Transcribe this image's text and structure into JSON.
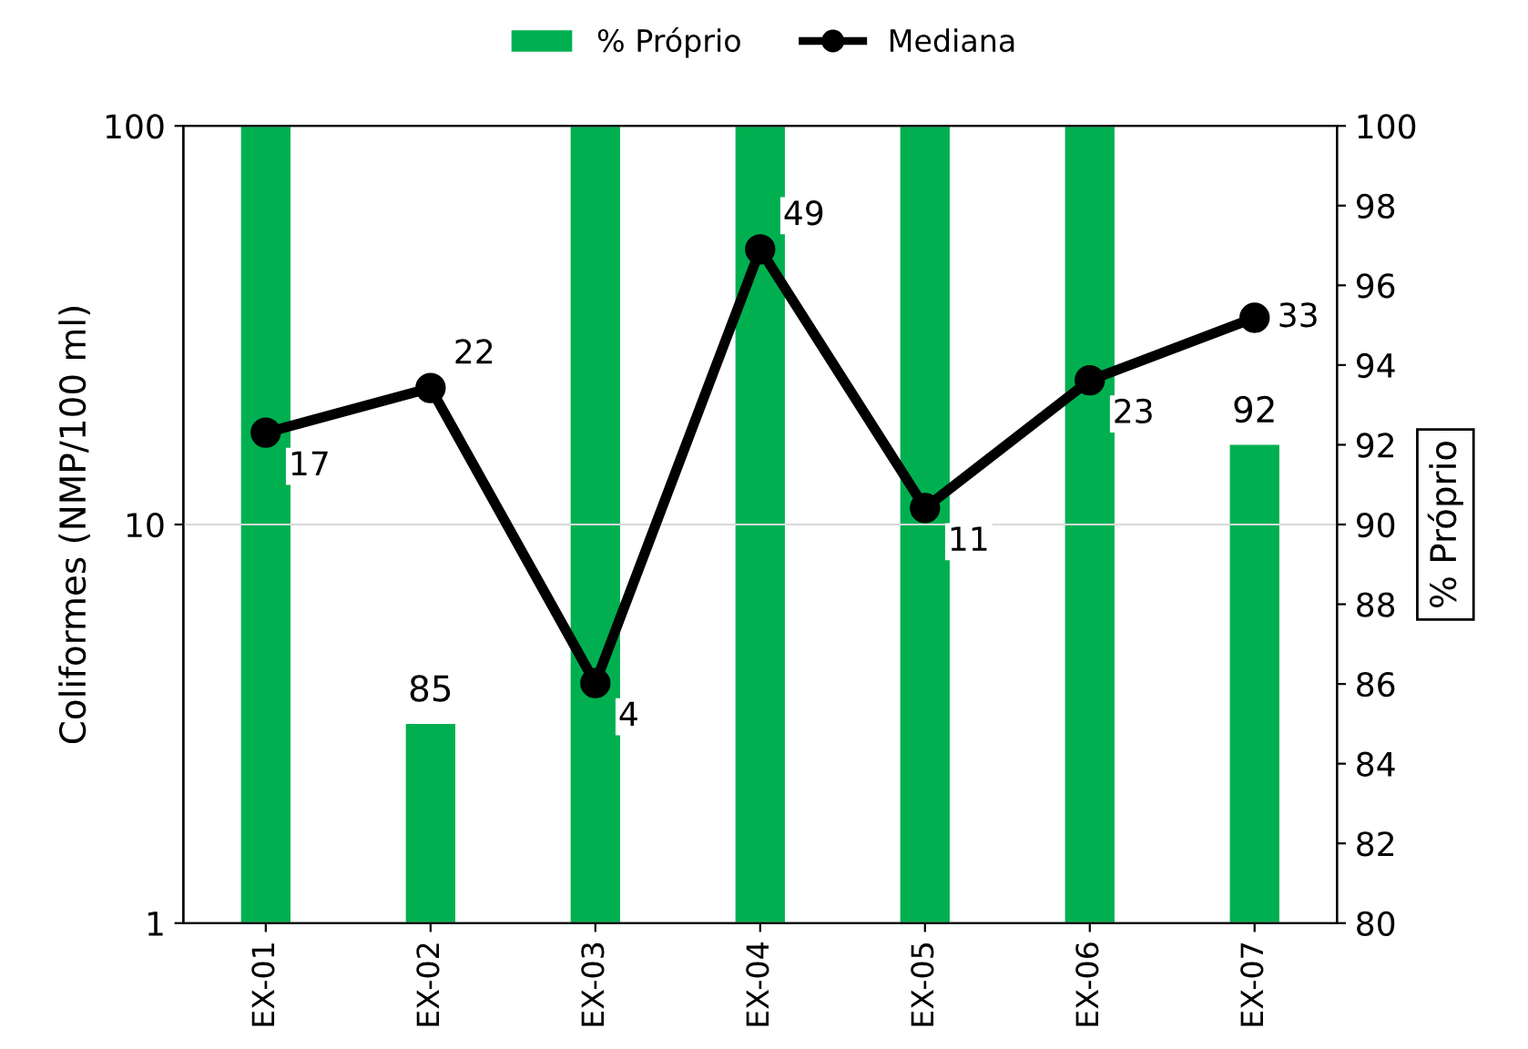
{
  "chart_data": {
    "type": "bar",
    "categories": [
      "EX-01",
      "EX-02",
      "EX-03",
      "EX-04",
      "EX-05",
      "EX-06",
      "EX-07"
    ],
    "ylabel": "Coliformes (NMP/100 ml)",
    "y2label": "% Próprio",
    "series": [
      {
        "name": "% Próprio",
        "axis": "y2",
        "color": "#00b050",
        "values": [
          100,
          85,
          100,
          100,
          100,
          100,
          92
        ],
        "value_labels": [
          null,
          "85",
          null,
          null,
          null,
          null,
          "92"
        ]
      },
      {
        "name": "Mediana",
        "type": "line",
        "color": "#000000",
        "values": [
          17,
          22,
          4,
          49,
          11,
          23,
          33
        ],
        "marker": "circle",
        "line_style": "solid",
        "data_labels": true
      }
    ],
    "log": "y",
    "ylim": [
      1,
      100
    ],
    "yticks": [
      1,
      10,
      100
    ],
    "y2lim": [
      80,
      100
    ],
    "y2ticks": [
      80,
      82,
      84,
      86,
      88,
      90,
      92,
      94,
      96,
      98,
      100
    ],
    "grid": "y",
    "legend": "top"
  }
}
